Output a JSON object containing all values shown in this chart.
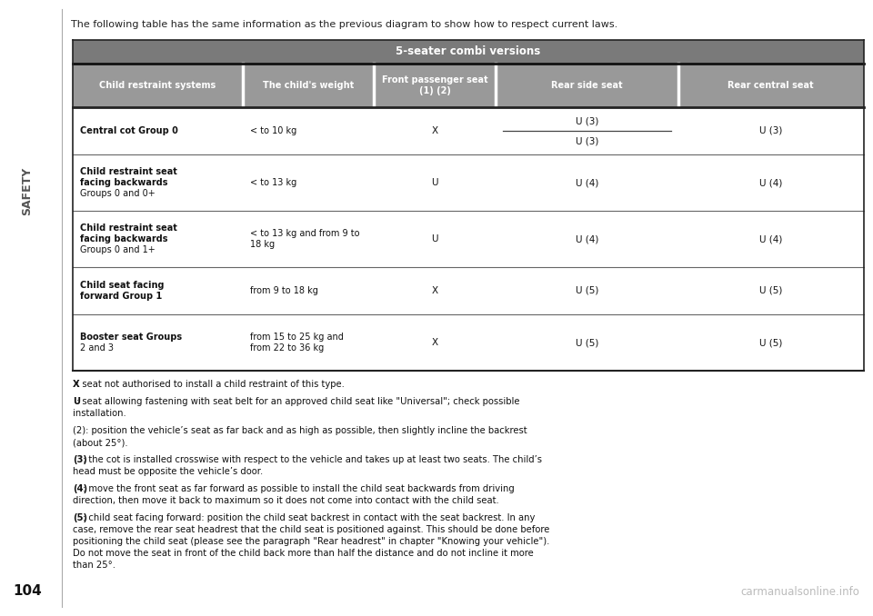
{
  "title_intro": "The following table has the same information as the previous diagram to show how to respect current laws.",
  "table_header_main": "5-seater combi versions",
  "col_headers": [
    "Child restraint systems",
    "The child's weight",
    "Front passenger seat\n(1) (2)",
    "Rear side seat",
    "Rear central seat"
  ],
  "rows": [
    {
      "system_bold": "Central cot",
      "system_normal": " Group 0",
      "system_bold_lines": 1,
      "weight": "< to 10 kg",
      "front": "X",
      "rear_side_split": true,
      "rear_side_top": "U (3)",
      "rear_side_bot": "U (3)",
      "rear_central": "U (3)"
    },
    {
      "system_bold": "Child restraint seat\nfacing backwards",
      "system_normal": "\nGroups 0 and 0+",
      "system_bold_lines": 2,
      "weight": "< to 13 kg",
      "front": "U",
      "rear_side_split": false,
      "rear_side_top": "U (4)",
      "rear_side_bot": "",
      "rear_central": "U (4)"
    },
    {
      "system_bold": "Child restraint seat\nfacing backwards",
      "system_normal": "\nGroups 0 and 1+",
      "system_bold_lines": 2,
      "weight": "< to 13 kg and from 9 to\n18 kg",
      "front": "U",
      "rear_side_split": false,
      "rear_side_top": "U (4)",
      "rear_side_bot": "",
      "rear_central": "U (4)"
    },
    {
      "system_bold": "Child seat facing\nforward",
      "system_normal": " Group 1",
      "system_bold_lines": 2,
      "weight": "from 9 to 18 kg",
      "front": "X",
      "rear_side_split": false,
      "rear_side_top": "U (5)",
      "rear_side_bot": "",
      "rear_central": "U (5)"
    },
    {
      "system_bold": "Booster seat",
      "system_normal": " Groups\n2 and 3",
      "system_bold_lines": 1,
      "weight": "from 15 to 25 kg and\nfrom 22 to 36 kg",
      "front": "X",
      "rear_side_split": false,
      "rear_side_top": "U (5)",
      "rear_side_bot": "",
      "rear_central": "U (5)"
    }
  ],
  "footnotes": [
    {
      "bold_part": "X",
      "rest": ": seat not authorised to install a child restraint of this type."
    },
    {
      "bold_part": "U",
      "rest": ": seat allowing fastening with seat belt for an approved child seat like \"Universal\"; check possible installation."
    },
    {
      "bold_part": null,
      "rest": "(2): position the vehicle’s seat as far back and as high as possible, then slightly incline the backrest (about 25°)."
    },
    {
      "bold_part": "(3)",
      "rest": ": the cot is installed crosswise with respect to the vehicle and takes up at least two seats. The child’s head must be opposite the vehicle’s door."
    },
    {
      "bold_part": "(4)",
      "rest": ": move the front seat as far forward as possible to install the child seat backwards from driving direction, then move it back to maximum so it does not come into contact with the child seat."
    },
    {
      "bold_part": "(5)",
      "rest": ": child seat facing forward: position the child seat backrest in contact with the seat backrest. In any case, remove the rear seat headrest that the child seat is positioned against. This should be done before positioning the child seat (please see the paragraph \"Rear headrest\" in chapter \"Knowing your vehicle\"). Do not move the seat in front of the child back more than half the distance and do not incline it more than 25°."
    }
  ],
  "page_number": "104",
  "watermark": "carmanualsonline.info",
  "sidebar_text": "SAFETY",
  "header_bg": "#7a7a7a",
  "subheader_bg": "#999999",
  "header_text_color": "#ffffff",
  "table_border_color": "#222222",
  "col_divider_color": "#ffffff",
  "row_divider_color": "#666666",
  "bg_color": "#ffffff"
}
